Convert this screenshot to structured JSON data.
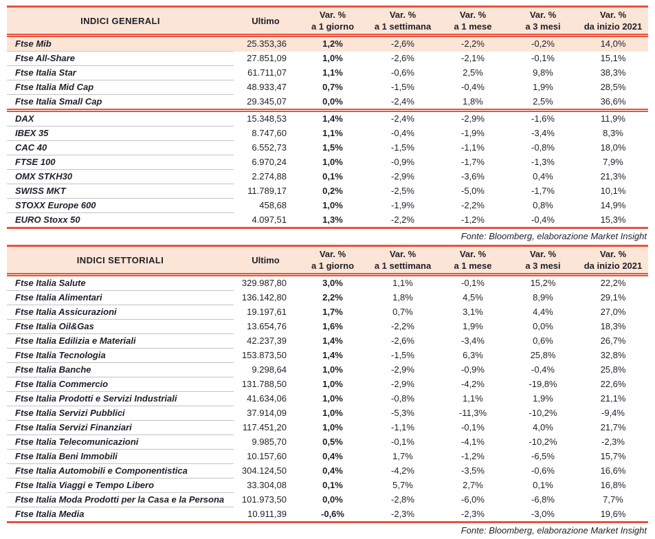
{
  "colors": {
    "accent_red": "#E9523D",
    "header_bg": "#FBE5D6",
    "text": "#1F1F2B",
    "row_divider": "#C3C3C3"
  },
  "header": {
    "ultimo": "Ultimo",
    "var_label": "Var. %",
    "periods": [
      "a 1 giorno",
      "a 1 settimana",
      "a 1 mese",
      "a 3 mesi",
      "da inizio 2021"
    ]
  },
  "page": {
    "source_note": "Fonte: Bloomberg, elaborazione Market Insight"
  },
  "tables": [
    {
      "title": "INDICI GENERALI",
      "groups": [
        {
          "rows": [
            {
              "name": "Ftse Mib",
              "ultimo": "25.353,36",
              "vars": [
                "1,2%",
                "-2,6%",
                "-2,2%",
                "-0,2%",
                "14,0%"
              ],
              "highlight": true
            },
            {
              "name": "Ftse All-Share",
              "ultimo": "27.851,09",
              "vars": [
                "1,0%",
                "-2,6%",
                "-2,1%",
                "-0,1%",
                "15,1%"
              ]
            },
            {
              "name": "Ftse Italia Star",
              "ultimo": "61.711,07",
              "vars": [
                "1,1%",
                "-0,6%",
                "2,5%",
                "9,8%",
                "38,3%"
              ]
            },
            {
              "name": "Ftse Italia Mid Cap",
              "ultimo": "48.933,47",
              "vars": [
                "0,7%",
                "-1,5%",
                "-0,4%",
                "1,9%",
                "28,5%"
              ]
            },
            {
              "name": "Ftse Italia Small Cap",
              "ultimo": "29.345,07",
              "vars": [
                "0,0%",
                "-2,4%",
                "1,8%",
                "2,5%",
                "36,6%"
              ]
            }
          ]
        },
        {
          "rows": [
            {
              "name": "DAX",
              "ultimo": "15.348,53",
              "vars": [
                "1,4%",
                "-2,4%",
                "-2,9%",
                "-1,6%",
                "11,9%"
              ]
            },
            {
              "name": "IBEX 35",
              "ultimo": "8.747,60",
              "vars": [
                "1,1%",
                "-0,4%",
                "-1,9%",
                "-3,4%",
                "8,3%"
              ]
            },
            {
              "name": "CAC 40",
              "ultimo": "6.552,73",
              "vars": [
                "1,5%",
                "-1,5%",
                "-1,1%",
                "-0,8%",
                "18,0%"
              ]
            },
            {
              "name": "FTSE 100",
              "ultimo": "6.970,24",
              "vars": [
                "1,0%",
                "-0,9%",
                "-1,7%",
                "-1,3%",
                "7,9%"
              ]
            },
            {
              "name": "OMX STKH30",
              "ultimo": "2.274,88",
              "vars": [
                "0,1%",
                "-2,9%",
                "-3,6%",
                "0,4%",
                "21,3%"
              ]
            },
            {
              "name": "SWISS MKT",
              "ultimo": "11.789,17",
              "vars": [
                "0,2%",
                "-2,5%",
                "-5,0%",
                "-1,7%",
                "10,1%"
              ]
            },
            {
              "name": "STOXX Europe 600",
              "ultimo": "458,68",
              "vars": [
                "1,0%",
                "-1,9%",
                "-2,2%",
                "0,8%",
                "14,9%"
              ]
            },
            {
              "name": "EURO Stoxx 50",
              "ultimo": "4.097,51",
              "vars": [
                "1,3%",
                "-2,2%",
                "-1,2%",
                "-0,4%",
                "15,3%"
              ]
            }
          ]
        }
      ]
    },
    {
      "title": "INDICI SETTORIALI",
      "groups": [
        {
          "rows": [
            {
              "name": "Ftse Italia Salute",
              "ultimo": "329.987,80",
              "vars": [
                "3,0%",
                "1,1%",
                "-0,1%",
                "15,2%",
                "22,2%"
              ]
            },
            {
              "name": "Ftse Italia Alimentari",
              "ultimo": "136.142,80",
              "vars": [
                "2,2%",
                "1,8%",
                "4,5%",
                "8,9%",
                "29,1%"
              ]
            },
            {
              "name": "Ftse Italia Assicurazioni",
              "ultimo": "19.197,61",
              "vars": [
                "1,7%",
                "0,7%",
                "3,1%",
                "4,4%",
                "27,0%"
              ]
            },
            {
              "name": "Ftse Italia Oil&Gas",
              "ultimo": "13.654,76",
              "vars": [
                "1,6%",
                "-2,2%",
                "1,9%",
                "0,0%",
                "18,3%"
              ]
            },
            {
              "name": "Ftse Italia Edilizia e Materiali",
              "ultimo": "42.237,39",
              "vars": [
                "1,4%",
                "-2,6%",
                "-3,4%",
                "0,6%",
                "26,7%"
              ]
            },
            {
              "name": "Ftse Italia Tecnologia",
              "ultimo": "153.873,50",
              "vars": [
                "1,4%",
                "-1,5%",
                "6,3%",
                "25,8%",
                "32,8%"
              ]
            },
            {
              "name": "Ftse Italia Banche",
              "ultimo": "9.298,64",
              "vars": [
                "1,0%",
                "-2,9%",
                "-0,9%",
                "-0,4%",
                "25,8%"
              ]
            },
            {
              "name": "Ftse Italia Commercio",
              "ultimo": "131.788,50",
              "vars": [
                "1,0%",
                "-2,9%",
                "-4,2%",
                "-19,8%",
                "22,6%"
              ]
            },
            {
              "name": "Ftse Italia Prodotti e Servizi Industriali",
              "ultimo": "41.634,06",
              "vars": [
                "1,0%",
                "-0,8%",
                "1,1%",
                "1,9%",
                "21,1%"
              ]
            },
            {
              "name": "Ftse Italia Servizi Pubblici",
              "ultimo": "37.914,09",
              "vars": [
                "1,0%",
                "-5,3%",
                "-11,3%",
                "-10,2%",
                "-9,4%"
              ]
            },
            {
              "name": "Ftse Italia Servizi Finanziari",
              "ultimo": "117.451,20",
              "vars": [
                "1,0%",
                "-1,1%",
                "-0,1%",
                "4,0%",
                "21,7%"
              ]
            },
            {
              "name": "Ftse Italia Telecomunicazioni",
              "ultimo": "9.985,70",
              "vars": [
                "0,5%",
                "-0,1%",
                "-4,1%",
                "-10,2%",
                "-2,3%"
              ]
            },
            {
              "name": "Ftse Italia Beni Immobili",
              "ultimo": "10.157,60",
              "vars": [
                "0,4%",
                "1,7%",
                "-1,2%",
                "-6,5%",
                "15,7%"
              ]
            },
            {
              "name": "Ftse Italia Automobili e Componentistica",
              "ultimo": "304.124,50",
              "vars": [
                "0,4%",
                "-4,2%",
                "-3,5%",
                "-0,6%",
                "16,6%"
              ]
            },
            {
              "name": "Ftse Italia Viaggi e Tempo Libero",
              "ultimo": "33.304,08",
              "vars": [
                "0,1%",
                "5,7%",
                "2,7%",
                "0,1%",
                "16,8%"
              ]
            },
            {
              "name": "Ftse Italia Moda Prodotti per la Casa e la Persona",
              "ultimo": "101.973,50",
              "vars": [
                "0,0%",
                "-2,8%",
                "-6,0%",
                "-6,8%",
                "7,7%"
              ]
            },
            {
              "name": "Ftse Italia Media",
              "ultimo": "10.911,39",
              "vars": [
                "-0,6%",
                "-2,3%",
                "-2,3%",
                "-3,0%",
                "19,6%"
              ]
            }
          ]
        }
      ]
    }
  ]
}
